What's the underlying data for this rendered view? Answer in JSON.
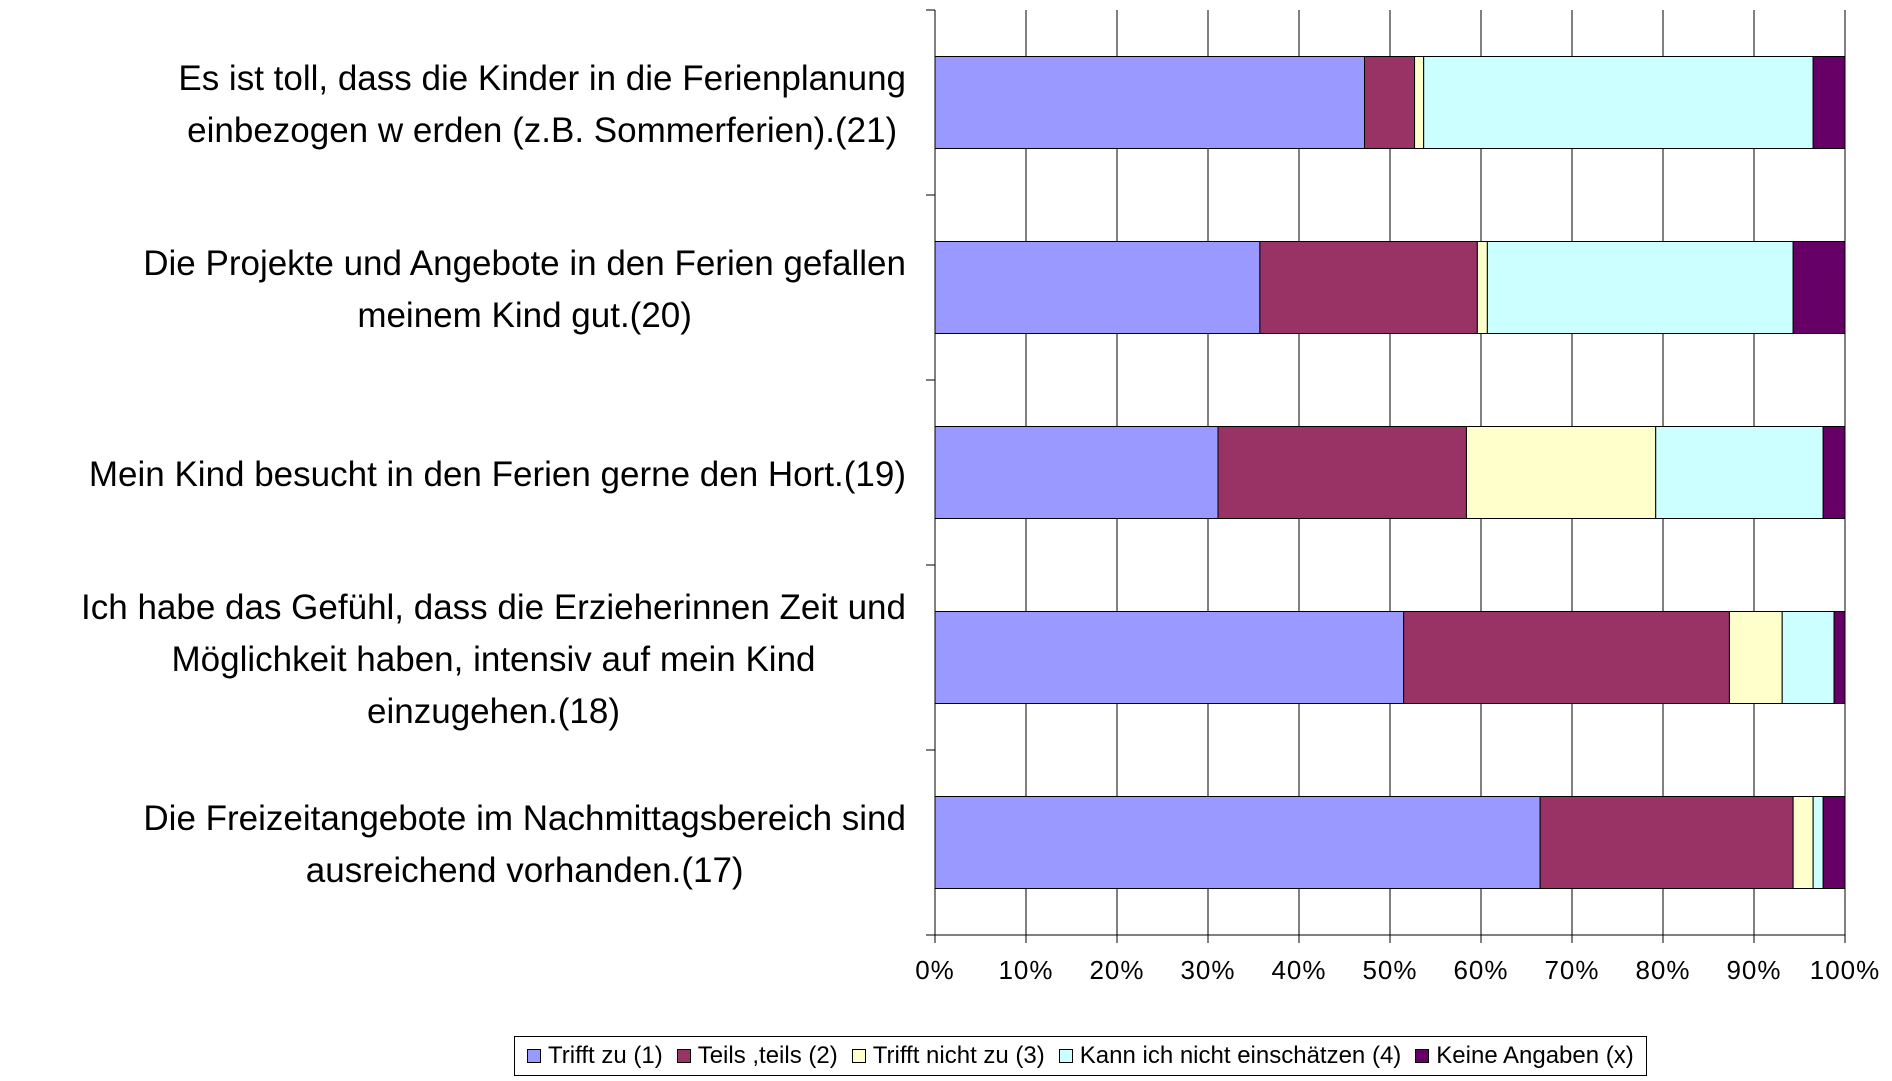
{
  "chart_data": {
    "type": "stacked_barh",
    "categories": [
      "Es ist toll, dass die Kinder in die Ferienplanung\neinbezogen w erden (z.B. Sommerferien).(21)",
      "Die Projekte und Angebote in den Ferien gefallen\nmeinem Kind gut.(20)",
      "Mein Kind besucht in den Ferien gerne den Hort.(19)",
      "Ich habe das Gefühl, dass die Erzieherinnen Zeit und\nMöglichkeit haben, intensiv auf mein Kind\neinzugehen.(18)",
      "Die Freizeitangebote im Nachmittagsbereich sind\nausreichend vorhanden.(17)"
    ],
    "series": [
      {
        "name": "Trifft zu (1)",
        "color": "#9999ff",
        "values": [
          47.2,
          35.7,
          31.1,
          51.5,
          66.5
        ]
      },
      {
        "name": "Teils ,teils (2)",
        "color": "#993366",
        "values": [
          5.5,
          23.9,
          27.3,
          35.8,
          27.8
        ]
      },
      {
        "name": "Trifft nicht zu (3)",
        "color": "#ffffcc",
        "values": [
          1.0,
          1.1,
          20.8,
          5.8,
          2.2
        ]
      },
      {
        "name": "Kann ich nicht einschätzen (4)",
        "color": "#ccffff",
        "values": [
          42.8,
          33.6,
          18.4,
          5.7,
          1.1
        ]
      },
      {
        "name": "Keine Angaben (x)",
        "color": "#660066",
        "values": [
          3.5,
          5.7,
          2.4,
          1.2,
          2.4
        ]
      }
    ],
    "xlim": [
      0,
      100
    ],
    "xticks": [
      {
        "value": 0,
        "label": "0%"
      },
      {
        "value": 10,
        "label": "10%"
      },
      {
        "value": 20,
        "label": "20%"
      },
      {
        "value": 30,
        "label": "30%"
      },
      {
        "value": 40,
        "label": "40%"
      },
      {
        "value": 50,
        "label": "50%"
      },
      {
        "value": 60,
        "label": "60%"
      },
      {
        "value": 70,
        "label": "70%"
      },
      {
        "value": 80,
        "label": "80%"
      },
      {
        "value": 90,
        "label": "90%"
      },
      {
        "value": 100,
        "label": "100%"
      }
    ],
    "grid": true,
    "legend": "bottom"
  }
}
